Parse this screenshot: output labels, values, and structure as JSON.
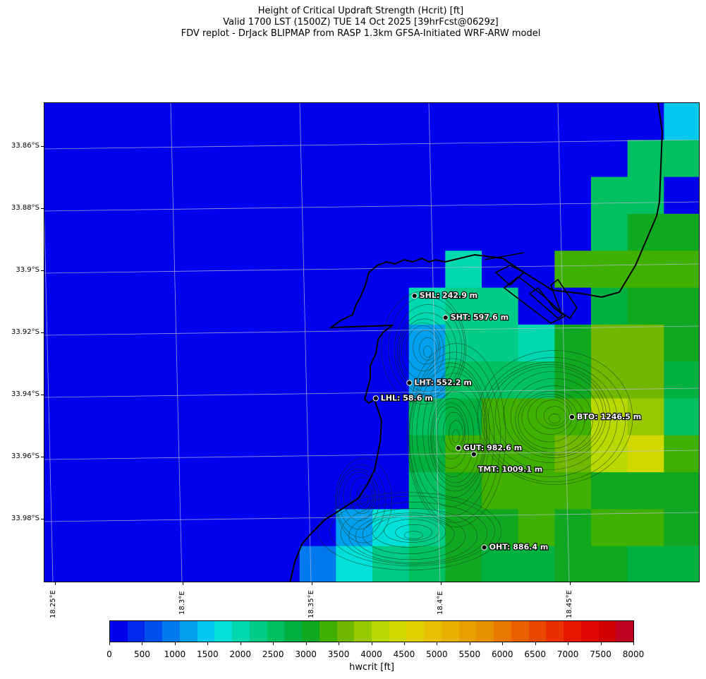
{
  "title": {
    "line1": "Height of Critical Updraft Strength (Hcrit) [ft]",
    "line2": "Valid 1700 LST (1500Z) TUE 14 Oct 2025 [39hrFcst@0629z]",
    "line3": "FDV replot - DrJack BLIPMAP from RASP 1.3km GFSA-Initiated WRF-ARW model"
  },
  "axes": {
    "lat_ticks": [
      "33.86°S",
      "33.88°S",
      "33.9°S",
      "33.92°S",
      "33.94°S",
      "33.96°S",
      "33.98°S"
    ],
    "lon_ticks": [
      "18.25°E",
      "18.3°E",
      "18.35°E",
      "18.4°E",
      "18.45°E"
    ]
  },
  "colors": {
    "ocean": "#0000ee",
    "coastline": "#000000",
    "gridline": "#bfbfd8",
    "contour": "#1a3a1a"
  },
  "colormap": {
    "colors": [
      "#0000ee",
      "#0028ee",
      "#0050ee",
      "#0078ee",
      "#00a0ee",
      "#00c8ee",
      "#00e0d8",
      "#00d8b0",
      "#00cc88",
      "#00c060",
      "#00b040",
      "#10a820",
      "#40b000",
      "#70b800",
      "#98c800",
      "#b8d800",
      "#d0d800",
      "#e0d000",
      "#e8c000",
      "#e8b000",
      "#e8a000",
      "#e89000",
      "#e87800",
      "#e86000",
      "#e84800",
      "#e83000",
      "#e81800",
      "#e00800",
      "#d00000",
      "#c00020"
    ],
    "tick_labels": [
      "0",
      "500",
      "1000",
      "1500",
      "2000",
      "2500",
      "3000",
      "3500",
      "4000",
      "4500",
      "5000",
      "5500",
      "6000",
      "6500",
      "7000",
      "7500",
      "8000"
    ],
    "vmin": 0,
    "vmax": 8000,
    "label": "hwcrit [ft]"
  },
  "sites": [
    {
      "id": "SHL",
      "label": "SHL: 242.9 m",
      "lon": 18.389,
      "lat": -33.908
    },
    {
      "id": "SHT",
      "label": "SHT: 597.6 m",
      "lon": 18.401,
      "lat": -33.915
    },
    {
      "id": "LHT",
      "label": "LHT: 552.2 m",
      "lon": 18.387,
      "lat": -33.936
    },
    {
      "id": "LHL",
      "label": "LHL: 58.6 m",
      "lon": 18.374,
      "lat": -33.941
    },
    {
      "id": "BTO",
      "label": "BTO: 1246.5 m",
      "lon": 18.45,
      "lat": -33.947
    },
    {
      "id": "GUT",
      "label": "GUT: 982.6 m",
      "lon": 18.406,
      "lat": -33.957
    },
    {
      "id": "TMT",
      "label": "TMT: 1009.1 m",
      "lon": 18.412,
      "lat": -33.959
    },
    {
      "id": "OHT",
      "label": "OHT: 886.4 m",
      "lon": 18.416,
      "lat": -33.989
    }
  ],
  "grid": {
    "cols": 18,
    "rows": 13,
    "hcrit_ft": [
      [
        0,
        0,
        0,
        0,
        0,
        0,
        0,
        0,
        0,
        0,
        0,
        0,
        0,
        0,
        0,
        0,
        0,
        1500
      ],
      [
        0,
        0,
        0,
        0,
        0,
        0,
        0,
        0,
        0,
        0,
        0,
        0,
        0,
        0,
        0,
        0,
        2500,
        2500
      ],
      [
        0,
        0,
        0,
        0,
        0,
        0,
        0,
        0,
        0,
        0,
        0,
        0,
        0,
        0,
        0,
        2500,
        2500,
        0
      ],
      [
        0,
        0,
        0,
        0,
        0,
        0,
        0,
        0,
        0,
        0,
        0,
        0,
        0,
        0,
        0,
        2500,
        3000,
        3000
      ],
      [
        0,
        0,
        0,
        0,
        0,
        0,
        0,
        0,
        0,
        0,
        0,
        1900,
        0,
        0,
        3200,
        3200,
        3200,
        3400
      ],
      [
        0,
        0,
        0,
        0,
        0,
        0,
        0,
        0,
        0,
        0,
        2000,
        2200,
        2300,
        0,
        0,
        2800,
        3000,
        3000
      ],
      [
        0,
        0,
        0,
        0,
        0,
        0,
        0,
        0,
        0,
        0,
        1200,
        2200,
        2300,
        1900,
        3000,
        3600,
        3600,
        3000
      ],
      [
        0,
        0,
        0,
        0,
        0,
        0,
        0,
        0,
        0,
        0,
        1200,
        2500,
        2500,
        2500,
        3000,
        3600,
        3600,
        2800
      ],
      [
        0,
        0,
        0,
        0,
        0,
        0,
        0,
        0,
        0,
        0,
        2500,
        2800,
        3200,
        3200,
        3200,
        4000,
        3800,
        2500
      ],
      [
        0,
        0,
        0,
        0,
        0,
        0,
        0,
        0,
        0,
        0,
        2800,
        3400,
        3400,
        3400,
        3600,
        4200,
        4400,
        3300
      ],
      [
        0,
        0,
        0,
        0,
        0,
        0,
        0,
        0,
        0,
        0,
        2500,
        3000,
        3200,
        3300,
        3300,
        3000,
        3000,
        3000
      ],
      [
        0,
        0,
        0,
        0,
        0,
        0,
        0,
        0,
        1300,
        1600,
        2200,
        3000,
        3000,
        3200,
        3000,
        3200,
        3200,
        3000
      ],
      [
        0,
        0,
        0,
        0,
        0,
        0,
        0,
        1000,
        1600,
        2200,
        2600,
        3000,
        2800,
        2800,
        3000,
        3000,
        2800,
        2800
      ]
    ]
  }
}
